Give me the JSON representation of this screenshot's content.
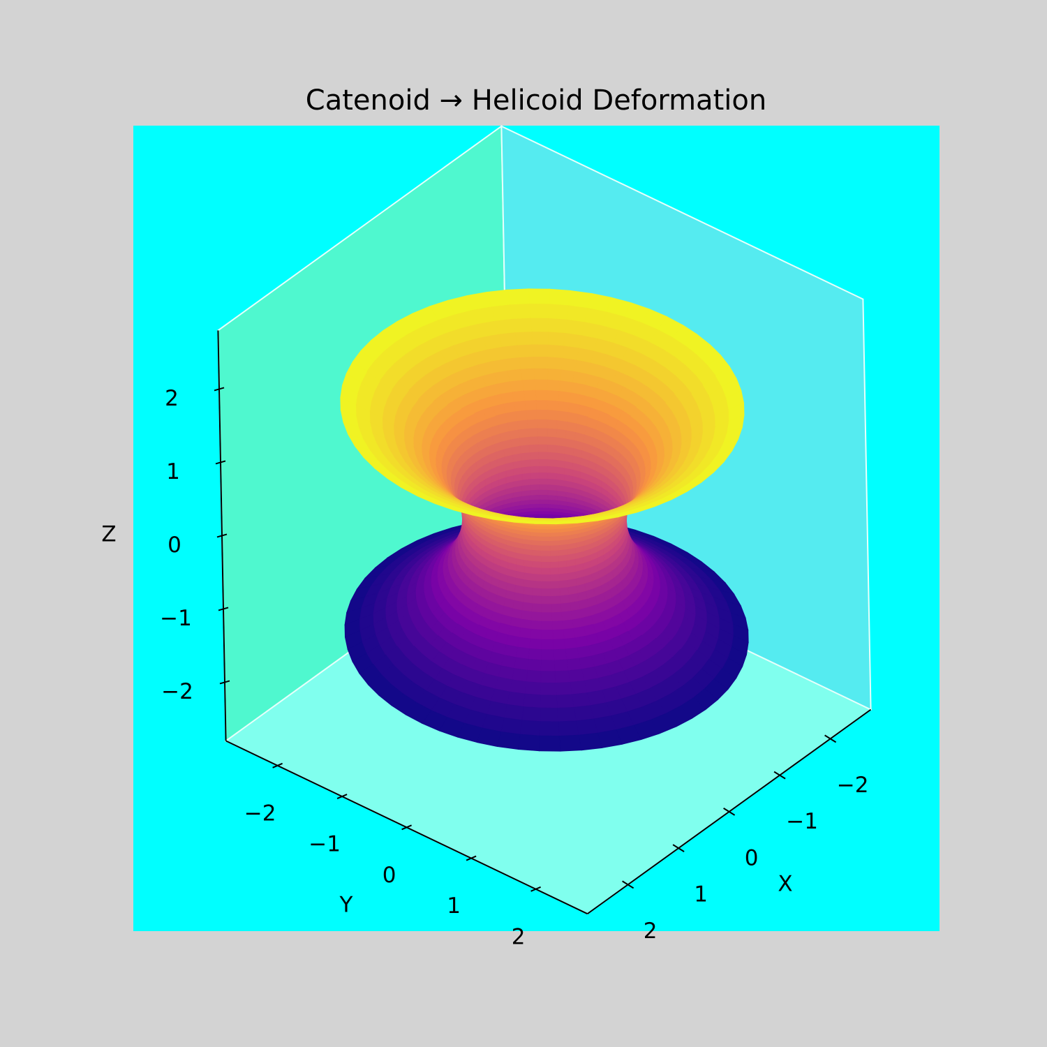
{
  "chart_data": {
    "type": "surface3d",
    "title": "Catenoid → Helicoid Deformation",
    "xlabel": "X",
    "ylabel": "Y",
    "zlabel": "Z",
    "xlim": [
      -2.8,
      2.8
    ],
    "ylim": [
      -2.8,
      2.8
    ],
    "zlim": [
      -2.8,
      2.8
    ],
    "xticks": [
      {
        "value": -2,
        "label": "−2"
      },
      {
        "value": -1,
        "label": "−1"
      },
      0,
      1,
      2
    ],
    "yticks": [
      {
        "value": -2,
        "label": "−2"
      },
      {
        "value": -1,
        "label": "−1"
      },
      0,
      1,
      2
    ],
    "zticks": [
      {
        "value": -2,
        "label": "−2"
      },
      {
        "value": -1,
        "label": "−1"
      },
      0,
      1,
      2
    ],
    "colormap": "plasma"
  }
}
